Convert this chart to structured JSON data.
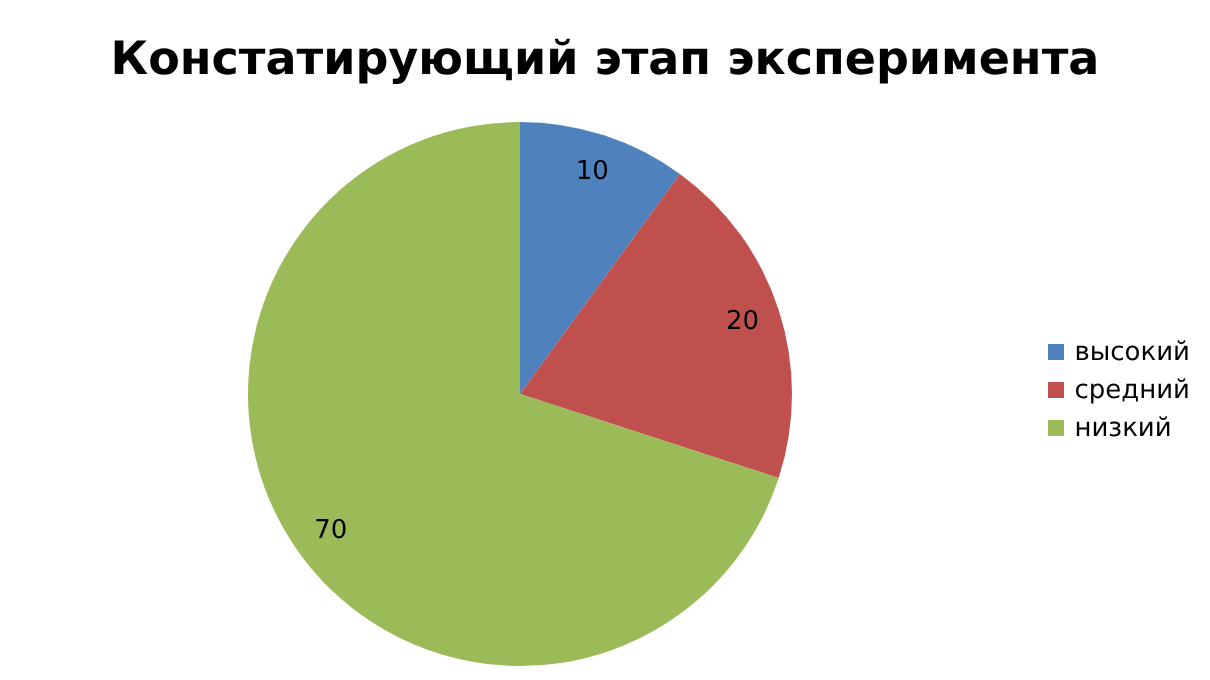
{
  "chart_data": {
    "type": "pie",
    "title": "Констатирующий этап эксперимента",
    "categories": [
      "высокий",
      "средний",
      "низкий"
    ],
    "values": [
      10,
      20,
      70
    ],
    "colors": [
      "#4f81bd",
      "#c0504d",
      "#9bbb59"
    ],
    "data_labels": true,
    "legend": "right"
  }
}
